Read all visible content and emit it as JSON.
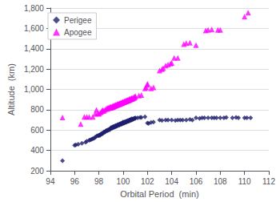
{
  "chart_data": {
    "type": "scatter",
    "xlabel": "Orbital Period  (min)",
    "ylabel": "Altitude  (km)",
    "xlim": [
      94,
      112
    ],
    "ylim": [
      200,
      1800
    ],
    "xticks": [
      94,
      96,
      98,
      100,
      102,
      104,
      106,
      108,
      110,
      112
    ],
    "yticks": [
      200,
      400,
      600,
      800,
      1000,
      1200,
      1400,
      1600,
      1800
    ],
    "grid": "y",
    "legend": "upper left",
    "series": [
      {
        "name": "Perigee",
        "color": "#1F1F6E",
        "marker": "diamond",
        "x": [
          95.0,
          96.0,
          96.1,
          96.3,
          96.6,
          96.9,
          97.0,
          97.2,
          97.3,
          97.4,
          97.5,
          97.6,
          97.7,
          97.8,
          97.9,
          98.0,
          98.0,
          98.1,
          98.1,
          98.2,
          98.2,
          98.3,
          98.3,
          98.4,
          98.4,
          98.5,
          98.5,
          98.6,
          98.6,
          98.7,
          98.7,
          98.8,
          98.8,
          98.9,
          98.9,
          99.0,
          99.0,
          99.0,
          99.1,
          99.1,
          99.1,
          99.2,
          99.2,
          99.2,
          99.3,
          99.3,
          99.3,
          99.4,
          99.4,
          99.4,
          99.5,
          99.5,
          99.5,
          99.6,
          99.6,
          99.6,
          99.7,
          99.7,
          99.7,
          99.8,
          99.8,
          99.8,
          99.9,
          99.9,
          99.9,
          100.0,
          100.0,
          100.0,
          100.0,
          100.1,
          100.1,
          100.1,
          100.2,
          100.2,
          100.2,
          100.3,
          100.3,
          100.3,
          100.4,
          100.4,
          100.4,
          100.5,
          100.5,
          100.5,
          100.6,
          100.6,
          100.6,
          100.7,
          100.7,
          100.7,
          100.8,
          100.8,
          100.9,
          100.9,
          101.0,
          101.0,
          101.2,
          101.4,
          101.5,
          101.8,
          102.0,
          102.1,
          102.3,
          102.5,
          103.0,
          103.2,
          103.5,
          103.7,
          104.0,
          104.3,
          104.5,
          104.7,
          104.9,
          105.2,
          105.5,
          105.7,
          106.0,
          106.3,
          106.5,
          106.7,
          107.0,
          107.3,
          107.5,
          107.7,
          108.0,
          108.3,
          108.5,
          109.0,
          109.3,
          109.5,
          110.0,
          110.2,
          110.5
        ],
        "values": [
          300,
          450,
          455,
          460,
          470,
          480,
          490,
          500,
          505,
          510,
          515,
          520,
          530,
          540,
          545,
          550,
          545,
          555,
          550,
          560,
          565,
          565,
          570,
          575,
          580,
          580,
          585,
          590,
          595,
          595,
          600,
          600,
          605,
          605,
          610,
          615,
          620,
          625,
          620,
          625,
          630,
          625,
          630,
          635,
          630,
          635,
          640,
          635,
          640,
          645,
          640,
          645,
          650,
          645,
          650,
          655,
          650,
          655,
          660,
          655,
          660,
          665,
          660,
          665,
          670,
          665,
          670,
          675,
          680,
          670,
          675,
          680,
          675,
          680,
          685,
          680,
          685,
          690,
          685,
          690,
          695,
          690,
          695,
          700,
          695,
          700,
          705,
          700,
          705,
          710,
          705,
          710,
          710,
          715,
          715,
          720,
          720,
          725,
          725,
          730,
          670,
          665,
          675,
          680,
          700,
          695,
          700,
          700,
          700,
          695,
          700,
          700,
          700,
          700,
          705,
          700,
          720,
          715,
          720,
          720,
          720,
          720,
          720,
          720,
          720,
          720,
          725,
          720,
          725,
          720,
          720,
          720,
          720
        ]
      },
      {
        "name": "Apogee",
        "color": "#FF00FF",
        "marker": "triangle",
        "x": [
          95.0,
          96.5,
          96.8,
          97.0,
          97.2,
          97.5,
          97.7,
          97.8,
          97.9,
          98.0,
          98.1,
          98.2,
          98.3,
          98.3,
          98.4,
          98.5,
          98.6,
          98.7,
          98.7,
          98.8,
          98.8,
          98.9,
          98.9,
          99.0,
          99.0,
          99.0,
          99.1,
          99.1,
          99.1,
          99.2,
          99.2,
          99.2,
          99.3,
          99.3,
          99.3,
          99.4,
          99.4,
          99.4,
          99.5,
          99.5,
          99.5,
          99.6,
          99.6,
          99.6,
          99.7,
          99.7,
          99.7,
          99.8,
          99.8,
          99.8,
          99.9,
          99.9,
          99.9,
          100.0,
          100.0,
          100.0,
          100.1,
          100.1,
          100.1,
          100.2,
          100.2,
          100.2,
          100.3,
          100.3,
          100.3,
          100.4,
          100.4,
          100.4,
          100.5,
          100.5,
          100.5,
          100.6,
          100.6,
          100.6,
          100.7,
          100.7,
          100.7,
          100.8,
          100.8,
          100.9,
          100.9,
          101.0,
          101.0,
          101.3,
          101.5,
          101.8,
          101.9,
          102.0,
          102.0,
          102.3,
          102.5,
          103.0,
          103.2,
          103.3,
          103.5,
          103.7,
          103.9,
          104.0,
          104.2,
          104.5,
          105.0,
          105.2,
          105.5,
          106.0,
          106.8,
          107.0,
          107.3,
          107.8,
          108.0,
          110.0,
          110.3
        ],
        "values": [
          725,
          660,
          730,
          730,
          730,
          730,
          760,
          800,
          765,
          760,
          770,
          780,
          800,
          790,
          790,
          800,
          810,
          820,
          810,
          815,
          820,
          820,
          830,
          820,
          830,
          825,
          825,
          835,
          830,
          830,
          840,
          835,
          835,
          845,
          840,
          840,
          850,
          845,
          845,
          855,
          850,
          850,
          860,
          855,
          855,
          865,
          860,
          860,
          870,
          865,
          865,
          875,
          870,
          870,
          880,
          875,
          875,
          885,
          880,
          880,
          890,
          885,
          885,
          895,
          890,
          890,
          900,
          895,
          895,
          905,
          900,
          900,
          910,
          905,
          905,
          915,
          910,
          910,
          920,
          915,
          925,
          925,
          935,
          940,
          945,
          1010,
          1020,
          1045,
          1055,
          1010,
          1020,
          1185,
          1200,
          1210,
          1235,
          1245,
          1255,
          1260,
          1310,
          1310,
          1445,
          1455,
          1460,
          1435,
          1580,
          1585,
          1590,
          1585,
          1585,
          1715,
          1755
        ]
      }
    ]
  }
}
